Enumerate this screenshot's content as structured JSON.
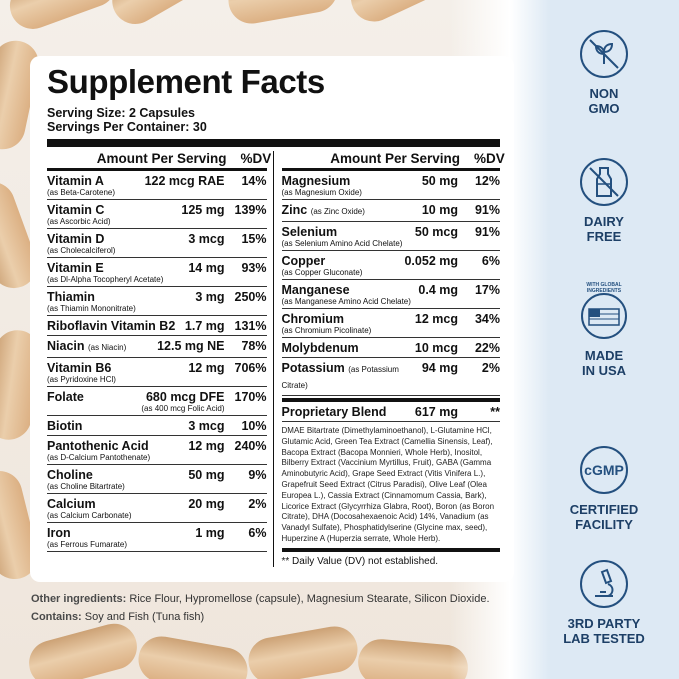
{
  "title": "Supplement Facts",
  "serving_size": "Serving Size: 2 Capsules",
  "servings_per_container": "Servings Per Container: 30",
  "headers": {
    "amount": "Amount Per Serving",
    "dv": "%DV"
  },
  "left_rows": [
    {
      "name": "Vitamin A",
      "sub": "(as Beta-Carotene)",
      "amount": "122 mcg RAE",
      "dv": "14%"
    },
    {
      "name": "Vitamin C",
      "sub": "(as Ascorbic Acid)",
      "amount": "125 mg",
      "dv": "139%"
    },
    {
      "name": "Vitamin D",
      "sub": "(as Cholecalciferol)",
      "amount": "3 mcg",
      "dv": "15%"
    },
    {
      "name": "Vitamin E",
      "sub": "(as Dl-Alpha Tocopheryl Acetate)",
      "amount": "14 mg",
      "dv": "93%"
    },
    {
      "name": "Thiamin",
      "sub": "(as Thiamin Mononitrate)",
      "amount": "3 mg",
      "dv": "250%"
    },
    {
      "name": "Riboflavin Vitamin B2",
      "sub": "",
      "amount": "1.7 mg",
      "dv": "131%"
    },
    {
      "name": "Niacin",
      "inline": "(as Niacin)",
      "amount": "12.5 mg NE",
      "dv": "78%"
    },
    {
      "name": "Vitamin B6",
      "sub": "(as Pyridoxine HCl)",
      "amount": "12 mg",
      "dv": "706%"
    },
    {
      "name": "Folate",
      "sub": "",
      "amount": "680 mcg DFE",
      "amount_sub": "(as 400 mcg Folic Acid)",
      "dv": "170%"
    },
    {
      "name": "Biotin",
      "sub": "",
      "amount": "3 mcg",
      "dv": "10%"
    },
    {
      "name": "Pantothenic Acid",
      "sub": "(as D-Calcium Pantothenate)",
      "amount": "12 mg",
      "dv": "240%"
    },
    {
      "name": "Choline",
      "sub": "(as Choline Bitartrate)",
      "amount": "50 mg",
      "dv": "9%"
    },
    {
      "name": "Calcium",
      "sub": "(as Calcium Carbonate)",
      "amount": "20 mg",
      "dv": "2%"
    },
    {
      "name": "Iron",
      "sub": "(as Ferrous Fumarate)",
      "amount": "1 mg",
      "dv": "6%"
    }
  ],
  "right_rows": [
    {
      "name": "Magnesium",
      "sub": "(as Magnesium Oxide)",
      "amount": "50 mg",
      "dv": "12%"
    },
    {
      "name": "Zinc",
      "inline": "(as Zinc Oxide)",
      "amount": "10 mg",
      "dv": "91%"
    },
    {
      "name": "Selenium",
      "sub": "(as Selenium Amino Acid Chelate)",
      "amount": "50 mcg",
      "dv": "91%"
    },
    {
      "name": "Copper",
      "sub": "(as Copper Gluconate)",
      "amount": "0.052 mg",
      "dv": "6%"
    },
    {
      "name": "Manganese",
      "sub": "(as Manganese Amino Acid Chelate)",
      "amount": "0.4 mg",
      "dv": "17%"
    },
    {
      "name": "Chromium",
      "sub": "(as Chromium Picolinate)",
      "amount": "12 mcg",
      "dv": "34%"
    },
    {
      "name": "Molybdenum",
      "sub": "",
      "amount": "10 mcg",
      "dv": "22%"
    },
    {
      "name": "Potassium",
      "inline": "(as Potassium Citrate)",
      "amount": "94 mg",
      "dv": "2%"
    }
  ],
  "blend": {
    "name": "Proprietary Blend",
    "amount": "617 mg",
    "dv": "**",
    "text": "DMAE Bitartrate (Dimethylaminoethanol), L-Glutamine HCl, Glutamic Acid, Green Tea Extract (Camellia Sinensis, Leaf), Bacopa Extract (Bacopa Monnieri, Whole Herb), Inositol, Bilberry Extract (Vaccinium Myrtillus, Fruit), GABA (Gamma Aminobutyric Acid), Grape Seed Extract (Vitis Vinifera L.), Grapefruit Seed Extract (Citrus Paradisi), Olive Leaf (Olea Europea L.), Cassia Extract (Cinnamomum Cassia, Bark), Licorice Extract (Glycyrrhiza Glabra, Root), Boron (as Boron Citrate), DHA (Docosahexaenoic Acid) 14%, Vanadium (as Vanadyl Sulfate), Phosphatidylserine (Glycine max, seed), Huperzine A (Huperzia serrate, Whole Herb).",
    "footnote": "** Daily Value (DV) not established."
  },
  "other": {
    "ingredients_label": "Other ingredients:",
    "ingredients": "Rice Flour, Hypromellose (capsule), Magnesium Stearate, Silicon Dioxide.",
    "contains_label": "Contains:",
    "contains": "Soy and Fish (Tuna fish)"
  },
  "badges": [
    {
      "icon": "no-gmo-icon",
      "line1": "NON",
      "line2": "GMO"
    },
    {
      "icon": "milk-bottle-icon",
      "line1": "DAIRY",
      "line2": "FREE"
    },
    {
      "icon": "usa-globe-icon",
      "seal_text": "WITH GLOBAL INGREDIENTS",
      "line1": "MADE",
      "line2": "IN USA"
    },
    {
      "icon": "cgmp-icon",
      "icon_text": "cGMP",
      "line1": "CERTIFIED",
      "line2": "FACILITY"
    },
    {
      "icon": "microscope-icon",
      "line1": "3RD PARTY",
      "line2": "LAB TESTED"
    }
  ],
  "colors": {
    "badge_text": "#1d3f66",
    "panel": "#dde9f4"
  }
}
